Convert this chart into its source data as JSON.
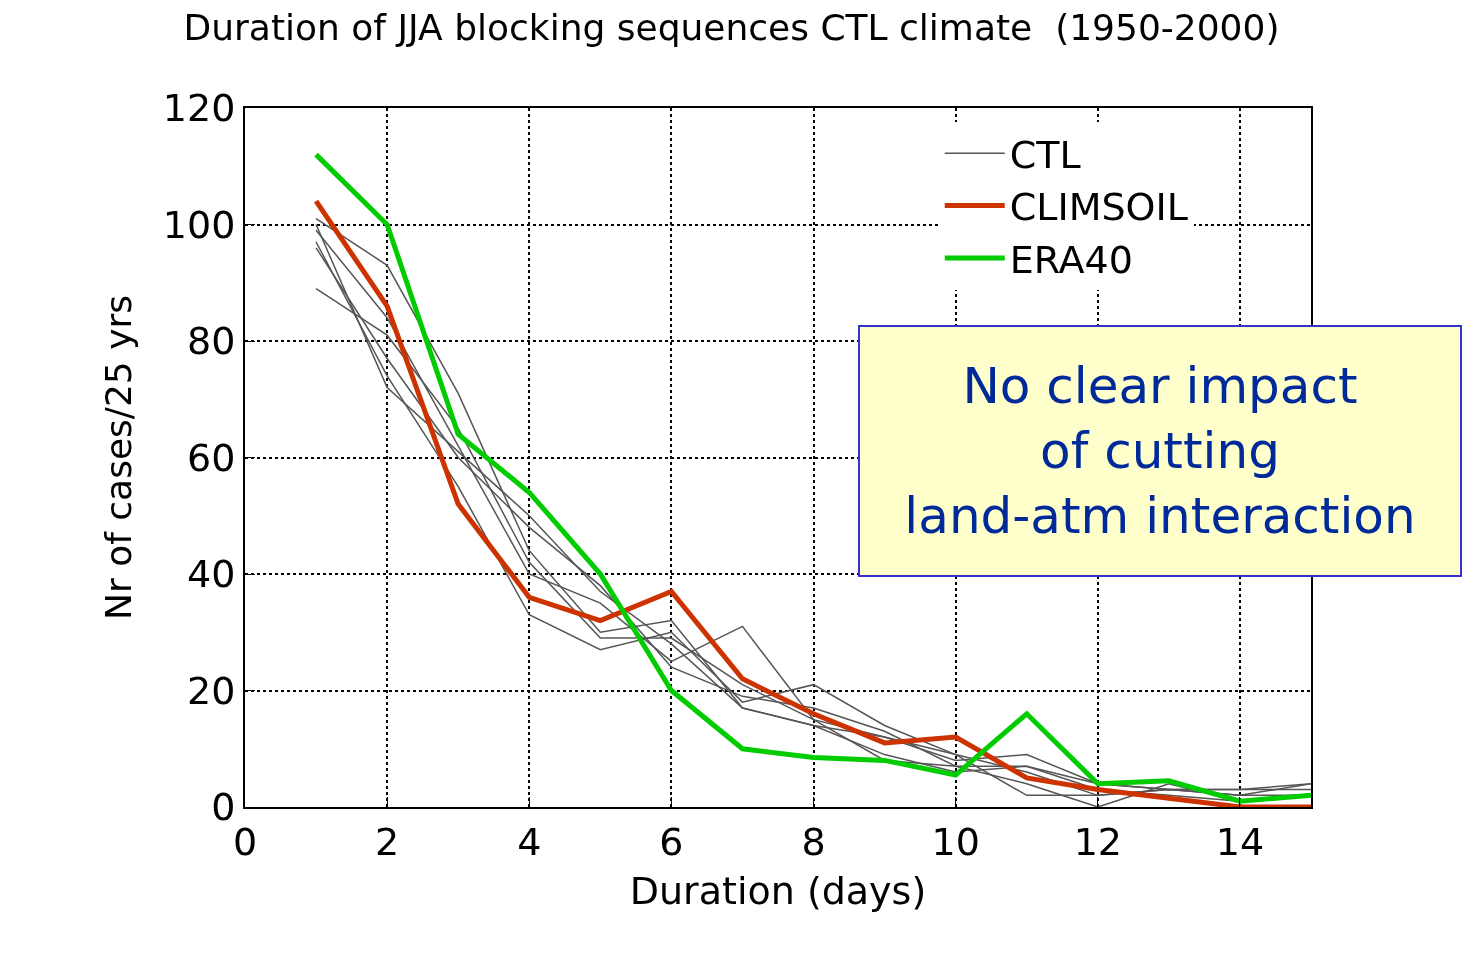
{
  "chart_data": {
    "type": "line",
    "title": "Duration of JJA blocking sequences CTL climate  (1950-2000)",
    "xlabel": "Duration (days)",
    "ylabel": "Nr of cases/25 yrs",
    "x": [
      1,
      2,
      3,
      4,
      5,
      6,
      7,
      8,
      9,
      10,
      11,
      12,
      13,
      14,
      15
    ],
    "xlim": [
      0,
      15
    ],
    "xticks": [
      0,
      2,
      4,
      6,
      8,
      10,
      12,
      14
    ],
    "ylim": [
      0,
      120
    ],
    "yticks": [
      0,
      20,
      40,
      60,
      80,
      100,
      120
    ],
    "grid": true,
    "legend": "top right",
    "line_style": "solid",
    "marker": "none",
    "series": [
      {
        "name": "CTL",
        "color": "#555555",
        "values": [
          101,
          93,
          71,
          44,
          30,
          32,
          17,
          14,
          12,
          8,
          9,
          4,
          3,
          3,
          4
        ]
      },
      {
        "color": "#555555",
        "values": [
          99,
          84,
          62,
          40,
          35,
          25,
          31,
          15,
          12,
          9,
          6,
          2,
          3,
          2,
          2
        ]
      },
      {
        "color": "#555555",
        "values": [
          97,
          74,
          55,
          33,
          27,
          30,
          18,
          21,
          14,
          9,
          2,
          2,
          3,
          2,
          4
        ]
      },
      {
        "color": "#555555",
        "values": [
          96,
          77,
          60,
          48,
          38,
          24,
          19,
          17,
          13,
          7,
          4,
          0,
          4,
          1,
          2
        ]
      },
      {
        "color": "#555555",
        "values": [
          89,
          81,
          65,
          42,
          29,
          29,
          21,
          15,
          8,
          7,
          7,
          4,
          3,
          3,
          3
        ]
      },
      {
        "color": "#555555",
        "values": [
          100,
          72,
          61,
          50,
          37,
          28,
          17,
          14,
          9,
          6,
          7,
          3,
          2,
          1,
          2
        ]
      },
      {
        "name": "CLIMSOIL",
        "color": "#cc3300",
        "values": [
          104,
          86,
          52,
          36,
          32,
          37,
          22,
          16,
          11,
          12,
          5,
          3,
          1.5,
          0,
          0
        ]
      },
      {
        "name": "ERA40",
        "color": "#00cc00",
        "values": [
          112,
          100,
          64,
          54,
          40,
          20,
          10,
          8.5,
          8,
          5.5,
          16,
          4,
          4.5,
          1,
          2
        ]
      }
    ],
    "annotations": [
      "No clear impact of cutting land-atm interaction"
    ]
  }
}
